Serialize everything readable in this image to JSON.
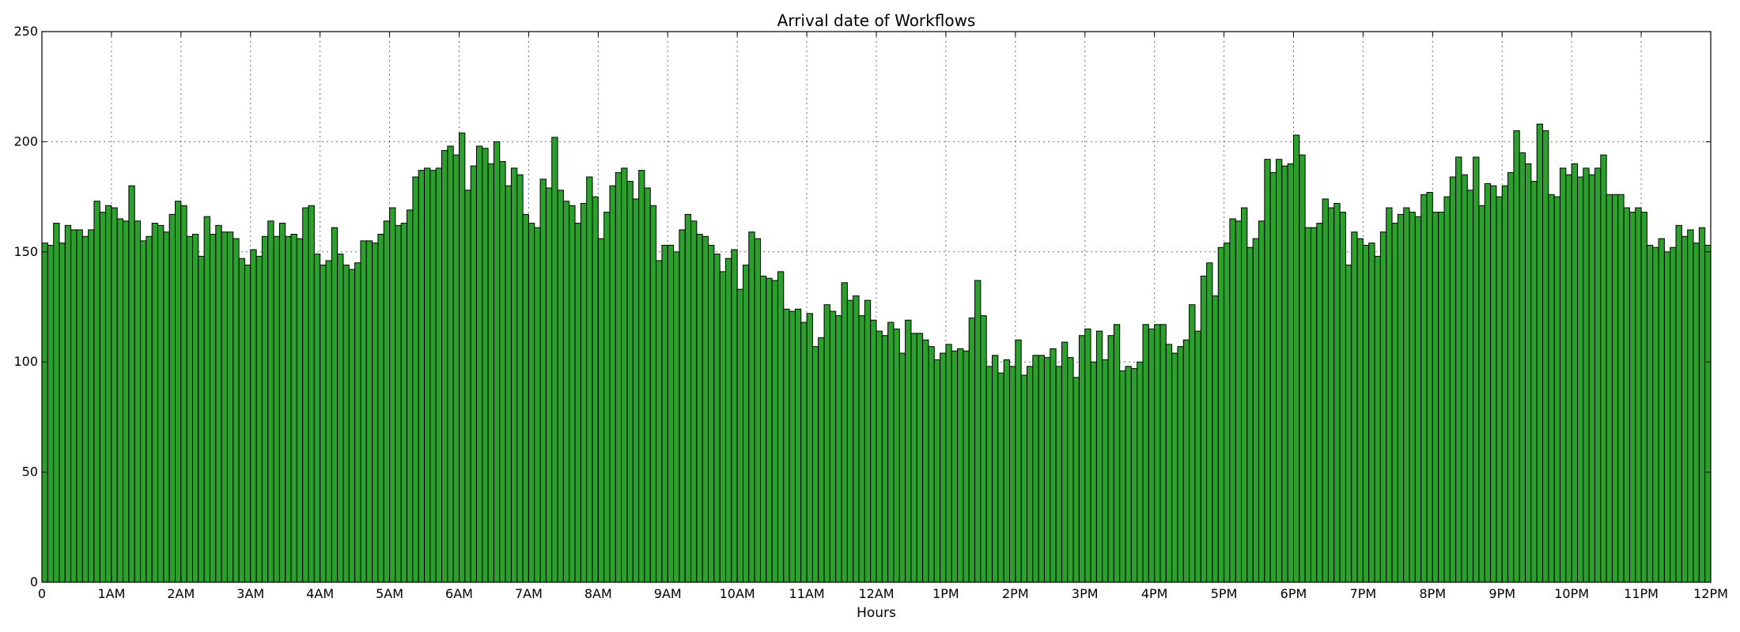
{
  "chart_data": {
    "type": "bar",
    "title": "Arrival date of Workflows",
    "xlabel": "Hours",
    "ylabel": "",
    "ylim": [
      0,
      250
    ],
    "xlim": [
      0,
      24
    ],
    "bin_width_hours": 0.0833333,
    "grid": true,
    "bar_color": "#2ca02c",
    "x_tick_labels": [
      "0",
      "1AM",
      "2AM",
      "3AM",
      "4AM",
      "5AM",
      "6AM",
      "7AM",
      "8AM",
      "9AM",
      "10AM",
      "11AM",
      "12AM",
      "1PM",
      "2PM",
      "3PM",
      "4PM",
      "5PM",
      "6PM",
      "7PM",
      "8PM",
      "9PM",
      "10PM",
      "11PM",
      "12PM"
    ],
    "y_ticks": [
      0,
      50,
      100,
      150,
      200,
      250
    ],
    "values": [
      154,
      153,
      163,
      154,
      162,
      160,
      160,
      157,
      160,
      173,
      168,
      171,
      170,
      165,
      164,
      180,
      164,
      155,
      157,
      163,
      162,
      159,
      167,
      173,
      171,
      157,
      158,
      148,
      166,
      158,
      162,
      159,
      159,
      156,
      147,
      144,
      151,
      148,
      157,
      164,
      157,
      163,
      157,
      158,
      156,
      170,
      171,
      149,
      144,
      146,
      161,
      149,
      144,
      142,
      145,
      155,
      155,
      154,
      158,
      164,
      170,
      162,
      163,
      169,
      184,
      187,
      188,
      187,
      188,
      196,
      198,
      194,
      204,
      178,
      189,
      198,
      197,
      190,
      200,
      191,
      180,
      188,
      185,
      167,
      163,
      161,
      183,
      179,
      202,
      178,
      173,
      171,
      163,
      172,
      184,
      175,
      156,
      168,
      180,
      186,
      188,
      182,
      174,
      187,
      179,
      171,
      146,
      153,
      153,
      150,
      160,
      167,
      164,
      158,
      157,
      153,
      149,
      141,
      147,
      151,
      133,
      144,
      159,
      156,
      139,
      138,
      137,
      141,
      124,
      123,
      124,
      118,
      122,
      107,
      111,
      126,
      123,
      121,
      136,
      128,
      130,
      121,
      128,
      119,
      114,
      112,
      118,
      115,
      104,
      119,
      113,
      113,
      110,
      107,
      101,
      104,
      108,
      105,
      106,
      105,
      120,
      137,
      121,
      98,
      103,
      95,
      101,
      98,
      110,
      94,
      98,
      103,
      103,
      102,
      106,
      98,
      109,
      102,
      93,
      112,
      115,
      100,
      114,
      101,
      112,
      117,
      96,
      98,
      97,
      100,
      117,
      115,
      117,
      117,
      108,
      104,
      107,
      110,
      126,
      114,
      139,
      145,
      130,
      152,
      154,
      165,
      164,
      170,
      152,
      156,
      164,
      192,
      186,
      192,
      189,
      190,
      203,
      194,
      161,
      161,
      163,
      174,
      170,
      172,
      168,
      144,
      159,
      156,
      153,
      154,
      148,
      159,
      170,
      163,
      167,
      170,
      168,
      166,
      176,
      177,
      168,
      168,
      175,
      184,
      193,
      185,
      178,
      193,
      171,
      181,
      180,
      175,
      180,
      186,
      205,
      195,
      190,
      182,
      208,
      205,
      176,
      175,
      188,
      185,
      190,
      184,
      188,
      185,
      188,
      194,
      176,
      176,
      176,
      170,
      168,
      170,
      168,
      153,
      152,
      156,
      150,
      152,
      162,
      157,
      160,
      154,
      161,
      153
    ]
  }
}
